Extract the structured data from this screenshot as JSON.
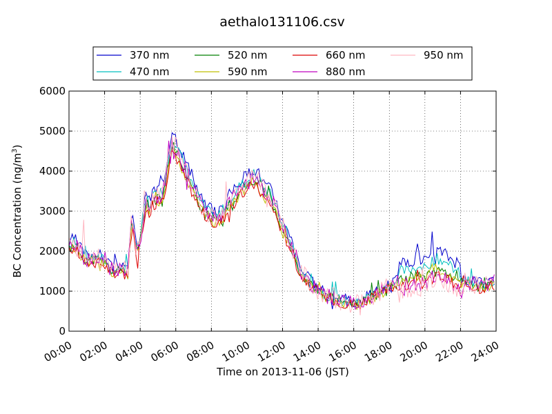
{
  "chart_data": {
    "type": "line",
    "title": "aethalo131106.csv",
    "xlabel": "Time on 2013-11-06 (JST)",
    "ylabel": "BC Concentration (ng/m",
    "ylabel_sup": "3",
    "ylabel_end": ")",
    "x_unit": "hours",
    "xlim": [
      0,
      24
    ],
    "ylim": [
      0,
      6000
    ],
    "grid": true,
    "legend_position": "top",
    "x_ticks": [
      0,
      2,
      4,
      6,
      8,
      10,
      12,
      14,
      16,
      18,
      20,
      22,
      24
    ],
    "x_tick_labels": [
      "00:00",
      "02:00",
      "04:00",
      "06:00",
      "08:00",
      "10:00",
      "12:00",
      "14:00",
      "16:00",
      "18:00",
      "20:00",
      "22:00",
      "24:00"
    ],
    "y_ticks": [
      0,
      1000,
      2000,
      3000,
      4000,
      5000,
      6000
    ],
    "y_tick_labels": [
      "0",
      "1000",
      "2000",
      "3000",
      "4000",
      "5000",
      "6000"
    ],
    "base_profile": {
      "x": [
        0,
        0.3,
        0.6,
        1.0,
        1.5,
        2.0,
        2.5,
        3.0,
        3.3,
        3.5,
        3.6,
        3.8,
        4.0,
        4.2,
        4.4,
        4.5,
        4.7,
        5.0,
        5.3,
        5.6,
        5.8,
        5.95,
        6.1,
        6.4,
        6.7,
        7.0,
        7.4,
        7.8,
        8.0,
        8.3,
        8.6,
        9.0,
        9.3,
        9.6,
        10.0,
        10.3,
        10.6,
        11.0,
        11.3,
        11.6,
        11.8,
        12.0,
        12.2,
        12.5,
        12.8,
        13.0,
        13.3,
        13.6,
        14.0,
        14.3,
        14.6,
        15.0,
        15.4,
        15.8,
        16.2,
        16.6,
        17.0,
        17.5,
        18.0,
        18.5,
        19.0,
        19.5,
        20.0,
        20.3,
        20.6,
        21.0,
        21.5,
        22.0,
        22.5,
        23.0,
        23.5,
        23.9
      ],
      "y": [
        2050,
        2150,
        1950,
        1750,
        1800,
        1700,
        1450,
        1550,
        1350,
        2700,
        2600,
        1900,
        2200,
        2900,
        3200,
        3000,
        3250,
        3300,
        3400,
        4200,
        4700,
        4550,
        4400,
        4100,
        3800,
        3500,
        3100,
        2900,
        2800,
        2750,
        2850,
        3150,
        3300,
        3500,
        3600,
        3800,
        3700,
        3400,
        3300,
        3000,
        2800,
        2500,
        2350,
        2100,
        1700,
        1450,
        1300,
        1150,
        1000,
        900,
        850,
        800,
        720,
        700,
        650,
        780,
        850,
        950,
        1100,
        1200,
        1250,
        1350,
        1300,
        1450,
        1550,
        1500,
        1350,
        1150,
        1200,
        1100,
        1150,
        1200
      ]
    },
    "series": [
      {
        "name": "370 nm",
        "color": "#0000cc",
        "mult": 1.08,
        "offset_late": 120,
        "noise_amp": 160,
        "seed": 3
      },
      {
        "name": "470 nm",
        "color": "#00bfbf",
        "mult": 1.04,
        "offset_late": 70,
        "noise_amp": 140,
        "seed": 7
      },
      {
        "name": "520 nm",
        "color": "#007f00",
        "mult": 1.0,
        "offset_late": 20,
        "noise_amp": 130,
        "seed": 11
      },
      {
        "name": "590 nm",
        "color": "#bfbf00",
        "mult": 0.98,
        "offset_late": 0,
        "noise_amp": 130,
        "seed": 13
      },
      {
        "name": "660 nm",
        "color": "#dd0000",
        "mult": 0.97,
        "offset_late": -30,
        "noise_amp": 140,
        "seed": 17
      },
      {
        "name": "880 nm",
        "color": "#bf00bf",
        "mult": 1.02,
        "offset_late": -60,
        "noise_amp": 200,
        "seed": 19
      },
      {
        "name": "950 nm",
        "color": "#ffb6c1",
        "mult": 1.03,
        "offset_late": -90,
        "noise_amp": 260,
        "seed": 23
      }
    ]
  }
}
